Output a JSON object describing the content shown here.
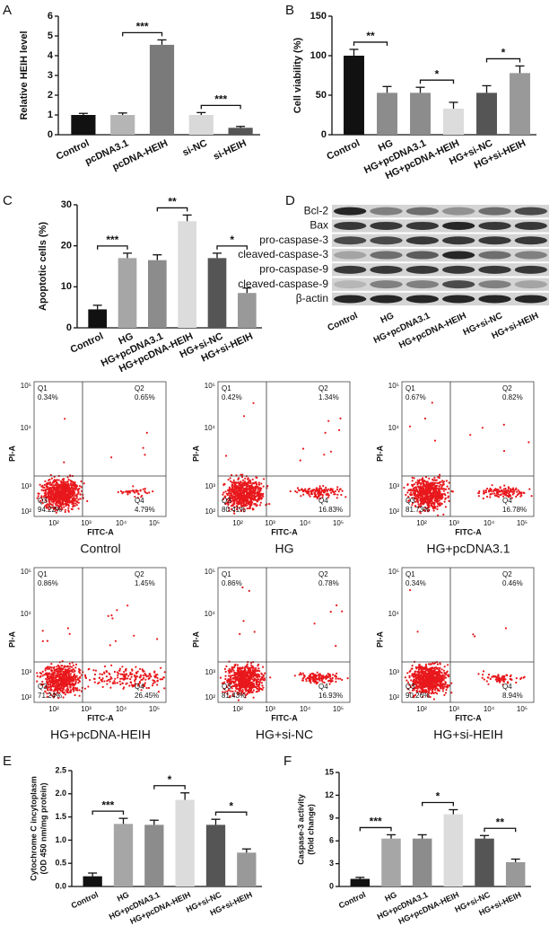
{
  "chart_data": [
    {
      "type": "bar",
      "panel": "A",
      "ylabel": [
        "Relative HEIH level"
      ],
      "categories": [
        "Control",
        "pcDNA3.1",
        "pcDNA-HEIH",
        "si-NC",
        "si-HEIH"
      ],
      "values": [
        1.0,
        1.0,
        4.55,
        1.0,
        0.35
      ],
      "errors": [
        0.08,
        0.1,
        0.25,
        0.12,
        0.07
      ],
      "colors": [
        "#111111",
        "#b5b5b5",
        "#7a7a7a",
        "#d9d9d9",
        "#555555"
      ],
      "ylim": [
        0,
        6
      ],
      "yticks": [
        0,
        1,
        2,
        3,
        4,
        5,
        6
      ],
      "significance": [
        {
          "between": [
            "pcDNA3.1",
            "pcDNA-HEIH"
          ],
          "text": "***"
        },
        {
          "between": [
            "si-NC",
            "si-HEIH"
          ],
          "text": "***"
        }
      ]
    },
    {
      "type": "bar",
      "panel": "B",
      "ylabel": [
        "Cell viability (%)"
      ],
      "categories": [
        "Control",
        "HG",
        "HG+pcDNA3.1",
        "HG+pcDNA-HEIH",
        "HG+si-NC",
        "HG+si-HEIH"
      ],
      "values": [
        100,
        53,
        53,
        33,
        53,
        78
      ],
      "errors": [
        8,
        8,
        7,
        8,
        9,
        9
      ],
      "colors": [
        "#111111",
        "#8c8c8c",
        "#8c8c8c",
        "#dcdcdc",
        "#555555",
        "#999999"
      ],
      "ylim": [
        0,
        150
      ],
      "yticks": [
        0,
        50,
        100,
        150
      ],
      "significance": [
        {
          "between": [
            "Control",
            "HG"
          ],
          "text": "**"
        },
        {
          "between": [
            "HG+pcDNA3.1",
            "HG+pcDNA-HEIH"
          ],
          "text": "*"
        },
        {
          "between": [
            "HG+si-NC",
            "HG+si-HEIH"
          ],
          "text": "*"
        }
      ]
    },
    {
      "type": "bar",
      "panel": "C",
      "ylabel": [
        "Apoptotic cells (%)"
      ],
      "categories": [
        "Control",
        "HG",
        "HG+pcDNA3.1",
        "HG+pcDNA-HEIH",
        "HG+si-NC",
        "HG+si-HEIH"
      ],
      "values": [
        4.5,
        17,
        16.5,
        26,
        17,
        8.5
      ],
      "errors": [
        1,
        1.2,
        1.3,
        1.5,
        1.2,
        1.2
      ],
      "colors": [
        "#111111",
        "#a6a6a6",
        "#8c8c8c",
        "#dcdcdc",
        "#555555",
        "#999999"
      ],
      "ylim": [
        0,
        30
      ],
      "yticks": [
        0,
        10,
        20,
        30
      ],
      "significance": [
        {
          "between": [
            "Control",
            "HG"
          ],
          "text": "***"
        },
        {
          "between": [
            "HG+pcDNA3.1",
            "HG+pcDNA-HEIH"
          ],
          "text": "**"
        },
        {
          "between": [
            "HG+si-NC",
            "HG+si-HEIH"
          ],
          "text": "*"
        }
      ]
    },
    {
      "type": "bar",
      "panel": "E",
      "ylabel": [
        "Cytochrome C incytoplasm",
        "(OD 450 nm/mg protein)"
      ],
      "categories": [
        "Control",
        "HG",
        "HG+pcDNA3.1",
        "HG+pcDNA-HEIH",
        "HG+si-NC",
        "HG+si-HEIH"
      ],
      "values": [
        0.22,
        1.35,
        1.33,
        1.87,
        1.33,
        0.73
      ],
      "errors": [
        0.07,
        0.12,
        0.1,
        0.15,
        0.12,
        0.08
      ],
      "colors": [
        "#111111",
        "#a6a6a6",
        "#8c8c8c",
        "#dcdcdc",
        "#555555",
        "#999999"
      ],
      "ylim": [
        0,
        2.5
      ],
      "yticks": [
        {
          "value": 0,
          "label": "0.0"
        },
        {
          "value": 0.5,
          "label": "0.5"
        },
        {
          "value": 1,
          "label": "1.0"
        },
        {
          "value": 1.5,
          "label": "1.5"
        },
        {
          "value": 2,
          "label": "2.0"
        },
        {
          "value": 2.5,
          "label": "2.5"
        }
      ],
      "significance": [
        {
          "between": [
            "Control",
            "HG"
          ],
          "text": "***"
        },
        {
          "between": [
            "HG+pcDNA3.1",
            "HG+pcDNA-HEIH"
          ],
          "text": "*"
        },
        {
          "between": [
            "HG+si-NC",
            "HG+si-HEIH"
          ],
          "text": "*"
        }
      ]
    },
    {
      "type": "bar",
      "panel": "F",
      "ylabel": [
        "Caspase-3 activity",
        "(fold change)"
      ],
      "categories": [
        "Control",
        "HG",
        "HG+pcDNA3.1",
        "HG+pcDNA-HEIH",
        "HG+si-NC",
        "HG+si-HEIH"
      ],
      "values": [
        1.0,
        6.3,
        6.3,
        9.5,
        6.3,
        3.2
      ],
      "errors": [
        0.2,
        0.5,
        0.5,
        0.6,
        0.4,
        0.4
      ],
      "colors": [
        "#111111",
        "#a6a6a6",
        "#8c8c8c",
        "#dcdcdc",
        "#555555",
        "#999999"
      ],
      "ylim": [
        0,
        15
      ],
      "yticks": [
        0,
        3,
        6,
        9,
        12,
        15
      ],
      "significance": [
        {
          "between": [
            "Control",
            "HG"
          ],
          "text": "***"
        },
        {
          "between": [
            "HG+pcDNA3.1",
            "HG+pcDNA-HEIH"
          ],
          "text": "*"
        },
        {
          "between": [
            "HG+si-NC",
            "HG+si-HEIH"
          ],
          "text": "**"
        }
      ]
    }
  ],
  "blot": {
    "panel": "D",
    "proteins": [
      "Bcl-2",
      "Bax",
      "pro-caspase-3",
      "cleaved-caspase-3",
      "pro-caspase-9",
      "cleaved-caspase-9",
      "β-actin"
    ],
    "lanes": [
      "Control",
      "HG",
      "HG+pcDNA3.1",
      "HG+pcDNA-HEIH",
      "HG+si-NC",
      "HG+si-HEIH"
    ]
  },
  "flow": {
    "y_axis": "PI-A",
    "x_axis": "FITC-A",
    "ticks": [
      "10²",
      "10³",
      "10⁴",
      "10⁵"
    ],
    "quadrants": [
      "Q1",
      "Q2",
      "Q3",
      "Q4"
    ],
    "plots": [
      {
        "caption": "Control",
        "percents": [
          "0.34%",
          "0.65%",
          "94.22%",
          "4.79%"
        ]
      },
      {
        "caption": "HG",
        "percents": [
          "0.42%",
          "1.34%",
          "80.41%",
          "16.83%"
        ]
      },
      {
        "caption": "HG+pcDNA3.1",
        "percents": [
          "0.67%",
          "0.82%",
          "81.73%",
          "16.78%"
        ]
      },
      {
        "caption": "HG+pcDNA-HEIH",
        "percents": [
          "0.86%",
          "1.45%",
          "71.24%",
          "26.45%"
        ]
      },
      {
        "caption": "HG+si-NC",
        "percents": [
          "0.86%",
          "0.78%",
          "81.43%",
          "16.93%"
        ]
      },
      {
        "caption": "HG+si-HEIH",
        "percents": [
          "0.34%",
          "0.46%",
          "90.26%",
          "8.94%"
        ]
      }
    ]
  }
}
